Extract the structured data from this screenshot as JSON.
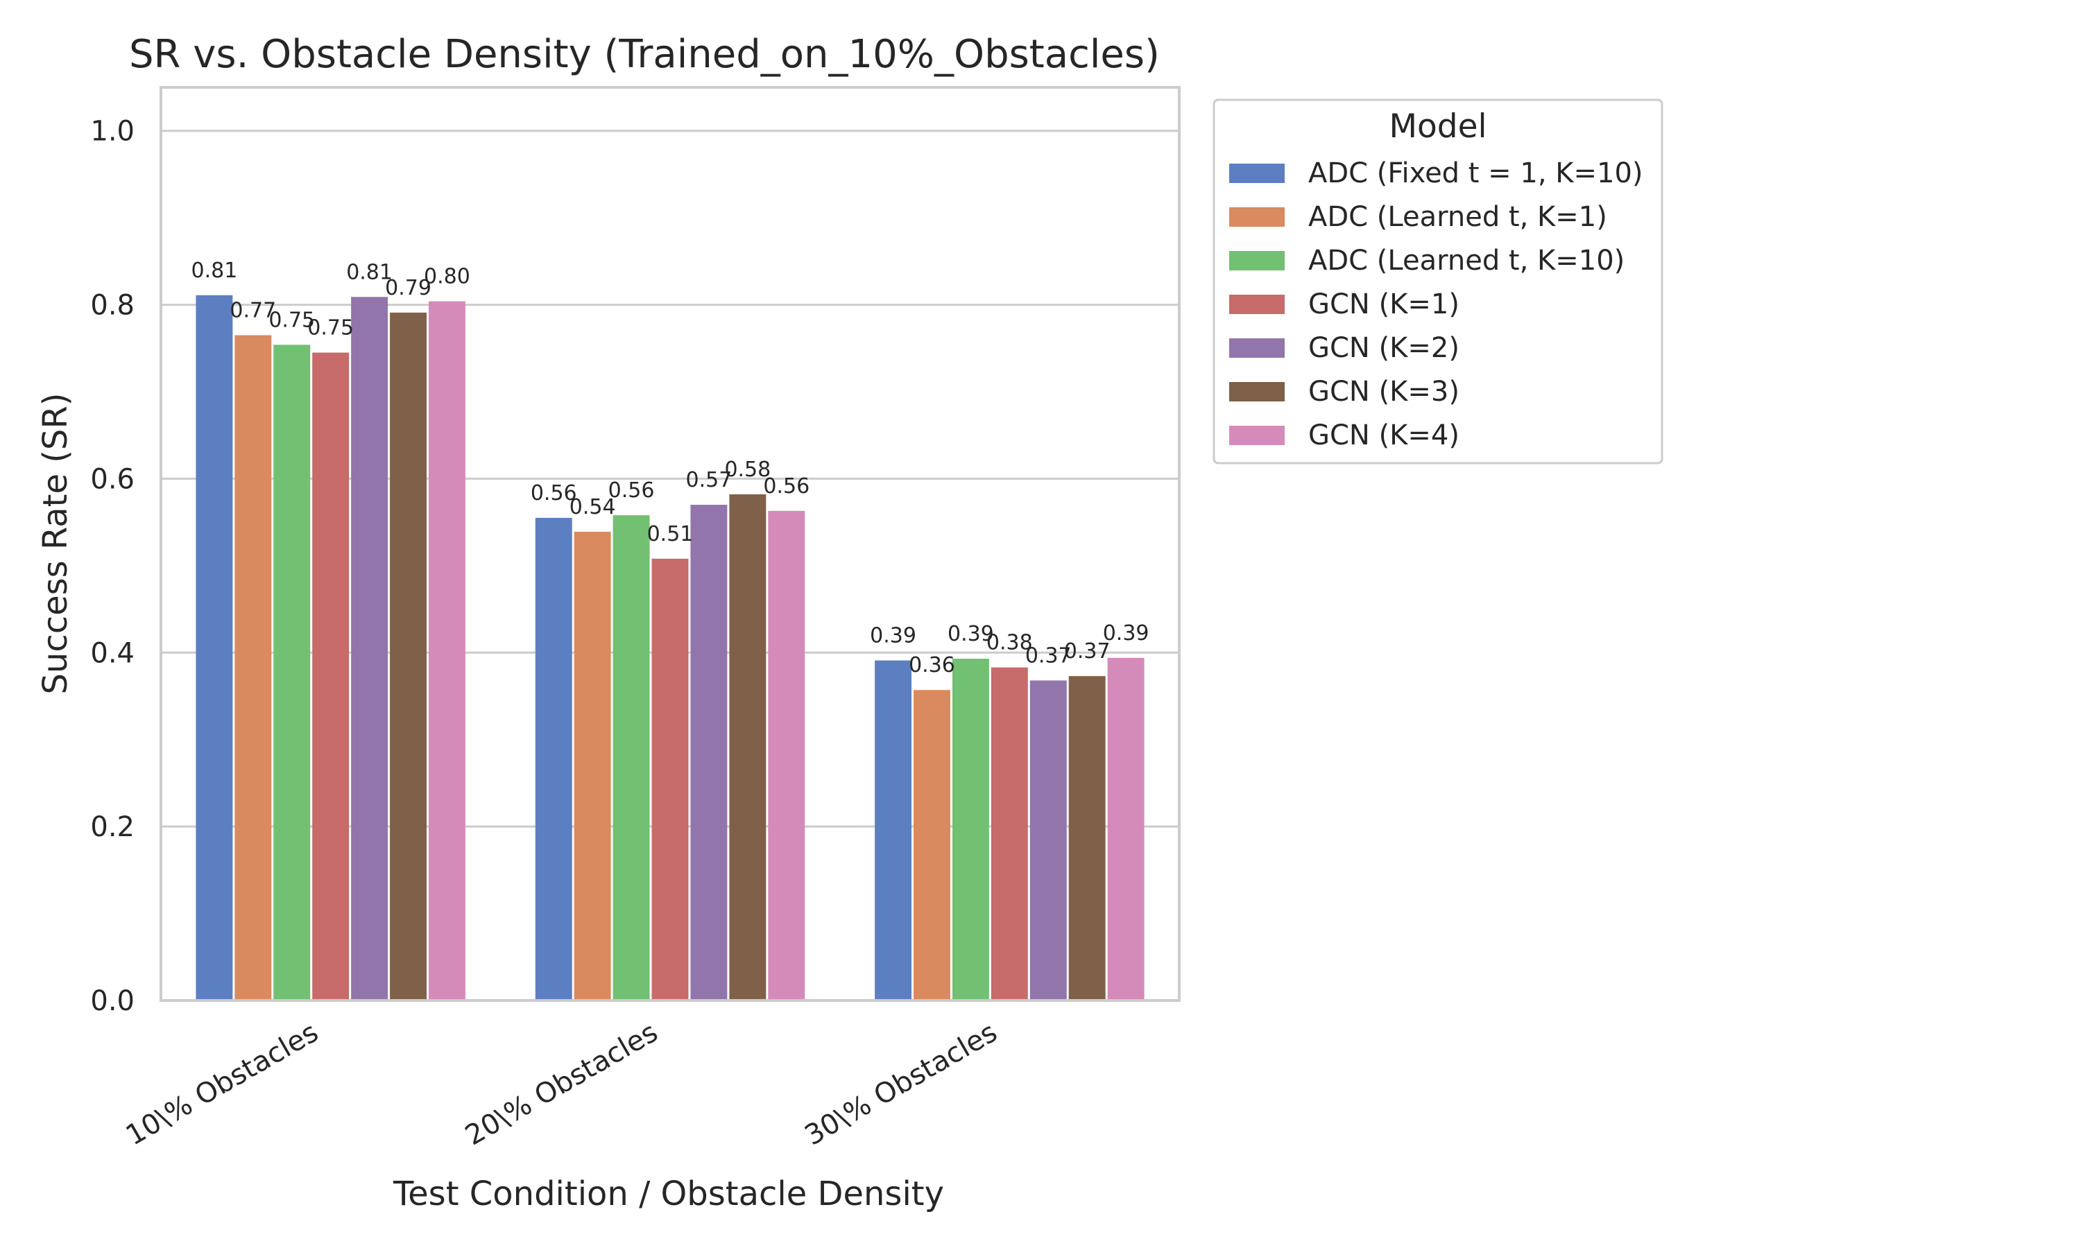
{
  "chart_data": {
    "type": "bar",
    "title": "SR vs. Obstacle Density (Trained_on_10%_Obstacles)",
    "xlabel": "Test Condition / Obstacle Density",
    "ylabel": "Success Rate (SR)",
    "ylim": [
      0,
      1.05
    ],
    "yticks": [
      "0.0",
      "0.2",
      "0.4",
      "0.6",
      "0.8",
      "1.0"
    ],
    "grid": "horizontal",
    "legend_title": "Model",
    "legend_placement": "outside-top-right",
    "categories": [
      "10\\% Obstacles",
      "20\\% Obstacles",
      "30\\% Obstacles"
    ],
    "series": [
      {
        "name": "ADC (Fixed t = 1, K=10)",
        "color": "#5b7fc1",
        "values": [
          0.811,
          0.555,
          0.391
        ],
        "labels": [
          "0.81",
          "0.56",
          "0.39"
        ]
      },
      {
        "name": "ADC (Learned t, K=1)",
        "color": "#d98a5e",
        "values": [
          0.765,
          0.539,
          0.357
        ],
        "labels": [
          "0.77",
          "0.54",
          "0.36"
        ]
      },
      {
        "name": "ADC (Learned t, K=10)",
        "color": "#72c071",
        "values": [
          0.754,
          0.558,
          0.393
        ],
        "labels": [
          "0.75",
          "0.56",
          "0.39"
        ]
      },
      {
        "name": "GCN (K=1)",
        "color": "#c76b6b",
        "values": [
          0.745,
          0.508,
          0.383
        ],
        "labels": [
          "0.75",
          "0.51",
          "0.38"
        ]
      },
      {
        "name": "GCN (K=2)",
        "color": "#9275aa",
        "values": [
          0.809,
          0.57,
          0.368
        ],
        "labels": [
          "0.81",
          "0.57",
          "0.37"
        ]
      },
      {
        "name": "GCN (K=3)",
        "color": "#7f6048",
        "values": [
          0.791,
          0.582,
          0.373
        ],
        "labels": [
          "0.79",
          "0.58",
          "0.37"
        ]
      },
      {
        "name": "GCN (K=4)",
        "color": "#d48bba",
        "values": [
          0.804,
          0.563,
          0.394
        ],
        "labels": [
          "0.80",
          "0.56",
          "0.39"
        ]
      }
    ]
  }
}
